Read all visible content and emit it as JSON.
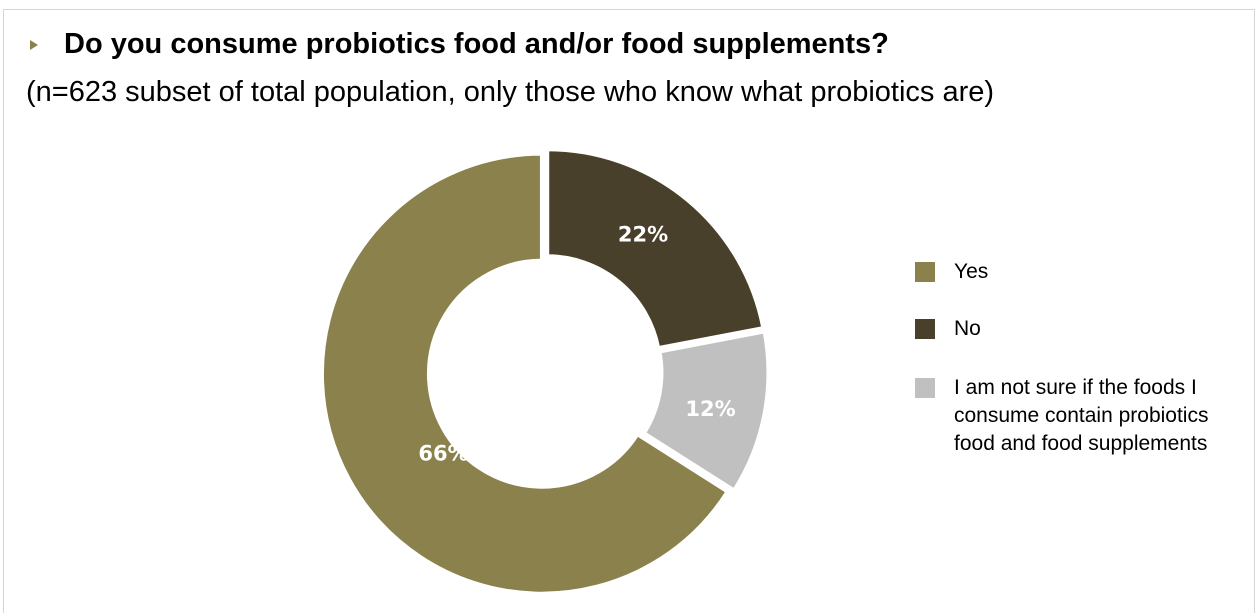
{
  "title": "Do you consume probiotics food and/or food supplements?",
  "subtitle": "(n=623 subset of total population, only those who know what probiotics are)",
  "chart_data": {
    "type": "pie",
    "variant": "donut",
    "title": "Do you consume probiotics food and/or food supplements?",
    "subtitle": "(n=623 subset of total population, only those who know what probiotics are)",
    "slices": [
      {
        "label": "No",
        "value": 22,
        "display": "22%",
        "color": "#48402a"
      },
      {
        "label": "I am not sure if the foods I consume contain probiotics food and food supplements",
        "value": 12,
        "display": "12%",
        "color": "#c0c0c0"
      },
      {
        "label": "Yes",
        "value": 66,
        "display": "66%",
        "color": "#8a814c"
      }
    ],
    "legend": {
      "position": "right",
      "entries": [
        {
          "label": "Yes",
          "color": "#8a814c"
        },
        {
          "label": "No",
          "color": "#48402a"
        },
        {
          "label": "I am not sure if the foods I consume contain probiotics food and food supplements",
          "color": "#c0c0c0"
        }
      ]
    },
    "unit": "%"
  }
}
